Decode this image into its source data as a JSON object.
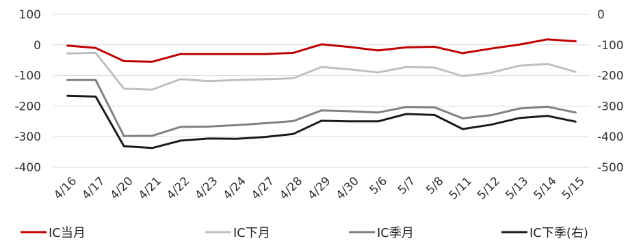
{
  "chart_data": {
    "type": "line",
    "categories": [
      "4/16",
      "4/17",
      "4/20",
      "4/21",
      "4/22",
      "4/23",
      "4/24",
      "4/27",
      "4/28",
      "4/29",
      "4/30",
      "5/6",
      "5/7",
      "5/8",
      "5/11",
      "5/12",
      "5/13",
      "5/14",
      "5/15"
    ],
    "left_axis": {
      "ylim": [
        -400,
        100
      ],
      "ticks": [
        100,
        0,
        -100,
        -200,
        -300,
        -400
      ]
    },
    "right_axis": {
      "ylim": [
        -500,
        0
      ],
      "ticks": [
        0,
        -100,
        -200,
        -300,
        -400,
        -500
      ]
    },
    "grid": true,
    "legend_position": "bottom",
    "series": [
      {
        "name": "IC当月",
        "color": "#C00000",
        "axis": "left",
        "values": [
          -2,
          -10,
          -53,
          -55,
          -30,
          -30,
          -30,
          -30,
          -26,
          2,
          -7,
          -18,
          -8,
          -6,
          -27,
          -12,
          1,
          18,
          12
        ]
      },
      {
        "name": "IC下月",
        "color": "#BFBFBF",
        "axis": "left",
        "values": [
          -28,
          -26,
          -143,
          -146,
          -112,
          -118,
          -115,
          -112,
          -109,
          -72,
          -80,
          -90,
          -72,
          -74,
          -102,
          -91,
          -68,
          -62,
          -88
        ]
      },
      {
        "name": "IC季月",
        "color": "#808080",
        "axis": "left",
        "values": [
          -115,
          -115,
          -298,
          -297,
          -268,
          -267,
          -262,
          -256,
          -249,
          -214,
          -217,
          -221,
          -203,
          -204,
          -240,
          -230,
          -208,
          -202,
          -221
        ]
      },
      {
        "name": "IC下季(右)",
        "color": "#1A1A1A",
        "axis": "right",
        "values": [
          -266,
          -269,
          -431,
          -437,
          -413,
          -406,
          -407,
          -401,
          -391,
          -348,
          -350,
          -350,
          -326,
          -329,
          -375,
          -361,
          -339,
          -332,
          -351
        ]
      }
    ]
  }
}
